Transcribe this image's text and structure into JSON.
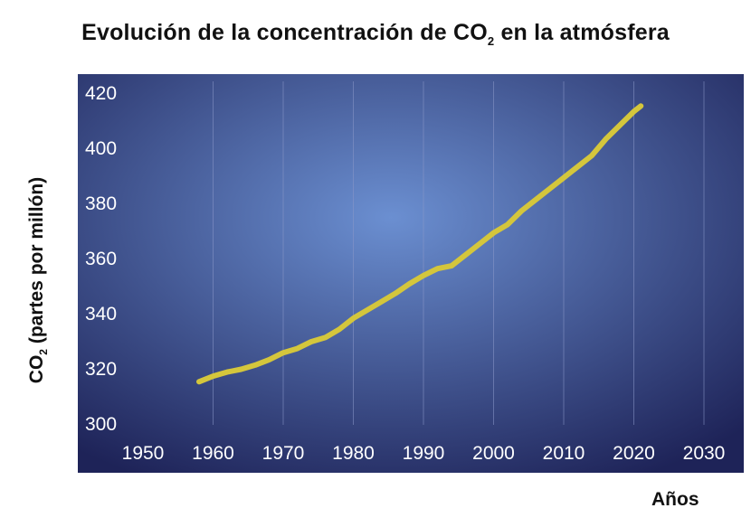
{
  "title": "Evolución de la concentración de CO",
  "title_subscript": "2",
  "title_suffix": " en la atmósfera",
  "ylabel": "CO",
  "ylabel_subscript": "2",
  "ylabel_suffix": " (partes por millón)",
  "xlabel": "Años",
  "colors": {
    "background_center": "#6b8fd1",
    "background_edge": "#1e2358",
    "line": "#d4c63c",
    "gridline": "#8a97c8",
    "text": "#111111"
  },
  "chart_data": {
    "type": "line",
    "title": "Evolución de la concentración de CO2 en la atmósfera",
    "xlabel": "Años",
    "ylabel": "CO2 (partes por millón)",
    "xlim": [
      1945,
      2035
    ],
    "ylim": [
      300,
      420
    ],
    "x_ticks": [
      1950,
      1960,
      1970,
      1980,
      1990,
      2000,
      2010,
      2020,
      2030
    ],
    "y_ticks": [
      300,
      320,
      340,
      360,
      380,
      400,
      420
    ],
    "grid": "vertical",
    "series": [
      {
        "x": [
          1958,
          1960,
          1962,
          1964,
          1966,
          1968,
          1970,
          1972,
          1974,
          1976,
          1978,
          1980,
          1982,
          1984,
          1986,
          1988,
          1990,
          1992,
          1994,
          1996,
          1998,
          2000,
          2002,
          2004,
          2006,
          2008,
          2010,
          2012,
          2014,
          2016,
          2018,
          2020,
          2021
        ],
        "y": [
          315,
          317,
          318.5,
          319.5,
          321,
          323,
          325.5,
          327,
          329.5,
          331,
          334,
          338,
          341,
          344,
          347,
          350.5,
          353.5,
          356,
          357,
          361,
          365,
          369,
          372,
          377,
          381,
          385,
          389,
          393,
          397,
          403,
          408,
          413,
          415
        ]
      }
    ]
  }
}
